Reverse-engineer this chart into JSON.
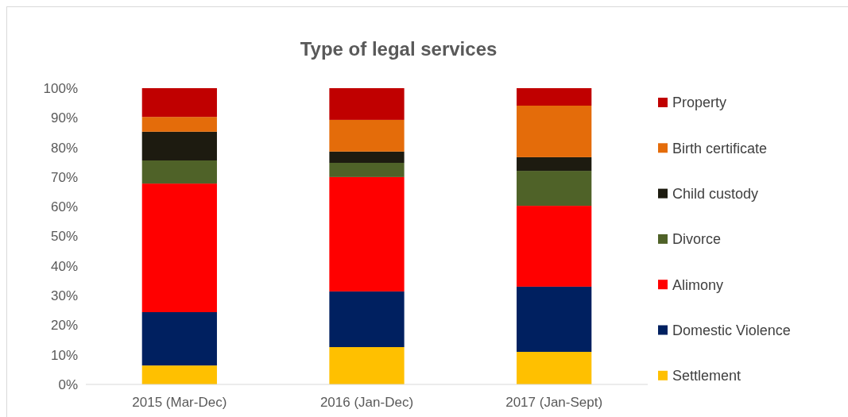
{
  "chart_data": {
    "type": "bar",
    "title": "Type of legal services",
    "categories": [
      "2015 (Mar-Dec)",
      "2016 (Jan-Dec)",
      "2017 (Jan-Sept)"
    ],
    "stacked": true,
    "ylim": [
      0,
      100
    ],
    "yticks": [
      {
        "value": 0,
        "label": "0%"
      },
      {
        "value": 10,
        "label": "10%"
      },
      {
        "value": 20,
        "label": "20%"
      },
      {
        "value": 30,
        "label": "30%"
      },
      {
        "value": 40,
        "label": "40%"
      },
      {
        "value": 50,
        "label": "50%"
      },
      {
        "value": 60,
        "label": "60%"
      },
      {
        "value": 70,
        "label": "70%"
      },
      {
        "value": 80,
        "label": "80%"
      },
      {
        "value": 90,
        "label": "90%"
      },
      {
        "value": 100,
        "label": "100%"
      }
    ],
    "legend": "right",
    "series": [
      {
        "name": "Settlement",
        "color": "#ffc000",
        "values": [
          6.4,
          12.6,
          11.0
        ]
      },
      {
        "name": "Domestic Violence",
        "color": "#002060",
        "values": [
          18.0,
          18.8,
          22.0
        ]
      },
      {
        "name": "Alimony",
        "color": "#ff0000",
        "values": [
          43.4,
          38.6,
          27.3
        ]
      },
      {
        "name": "Divorce",
        "color": "#4f6228",
        "values": [
          7.8,
          4.8,
          11.8
        ]
      },
      {
        "name": "Child custody",
        "color": "#1d1b10",
        "values": [
          9.7,
          3.8,
          4.6
        ]
      },
      {
        "name": "Birth certificate",
        "color": "#e46c0a",
        "values": [
          5.0,
          10.7,
          17.4
        ]
      },
      {
        "name": "Property",
        "color": "#c00000",
        "values": [
          9.7,
          10.7,
          5.9
        ]
      }
    ]
  }
}
